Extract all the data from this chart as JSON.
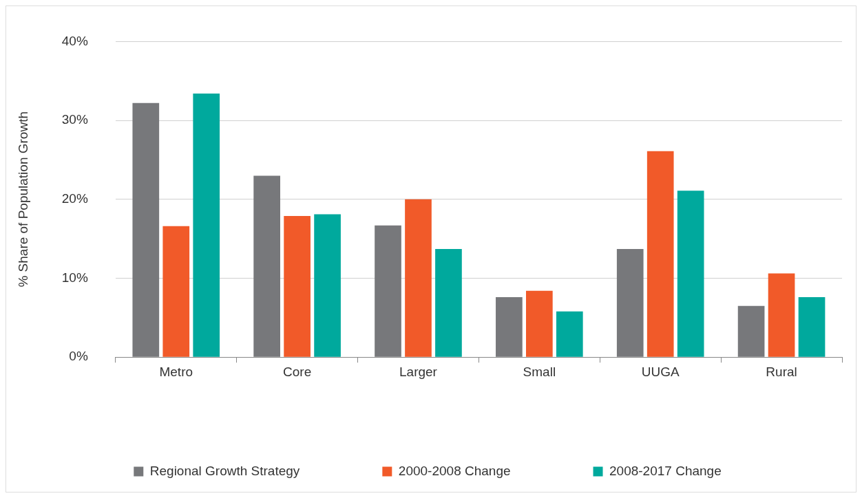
{
  "chart_data": {
    "type": "bar",
    "ylabel": "% Share of Population Growth",
    "categories": [
      "Metro",
      "Core",
      "Larger",
      "Small",
      "UUGA",
      "Rural"
    ],
    "series": [
      {
        "name": "Regional Growth Strategy",
        "color": "#77787b",
        "values": [
          32.2,
          23.0,
          16.7,
          7.6,
          13.7,
          6.5
        ]
      },
      {
        "name": "2000-2008 Change",
        "color": "#f15a29",
        "values": [
          16.6,
          17.9,
          20.0,
          8.4,
          26.1,
          10.6
        ]
      },
      {
        "name": "2008-2017 Change",
        "color": "#00a99d",
        "values": [
          33.4,
          18.1,
          13.7,
          5.8,
          21.1,
          7.6
        ]
      }
    ],
    "ylim": [
      0,
      40
    ],
    "yticks": [
      {
        "value": 0,
        "label": "0%"
      },
      {
        "value": 10,
        "label": "10%"
      },
      {
        "value": 20,
        "label": "20%"
      },
      {
        "value": 30,
        "label": "30%"
      },
      {
        "value": 40,
        "label": "40%"
      }
    ],
    "grid": "y",
    "legend": "bottom"
  }
}
